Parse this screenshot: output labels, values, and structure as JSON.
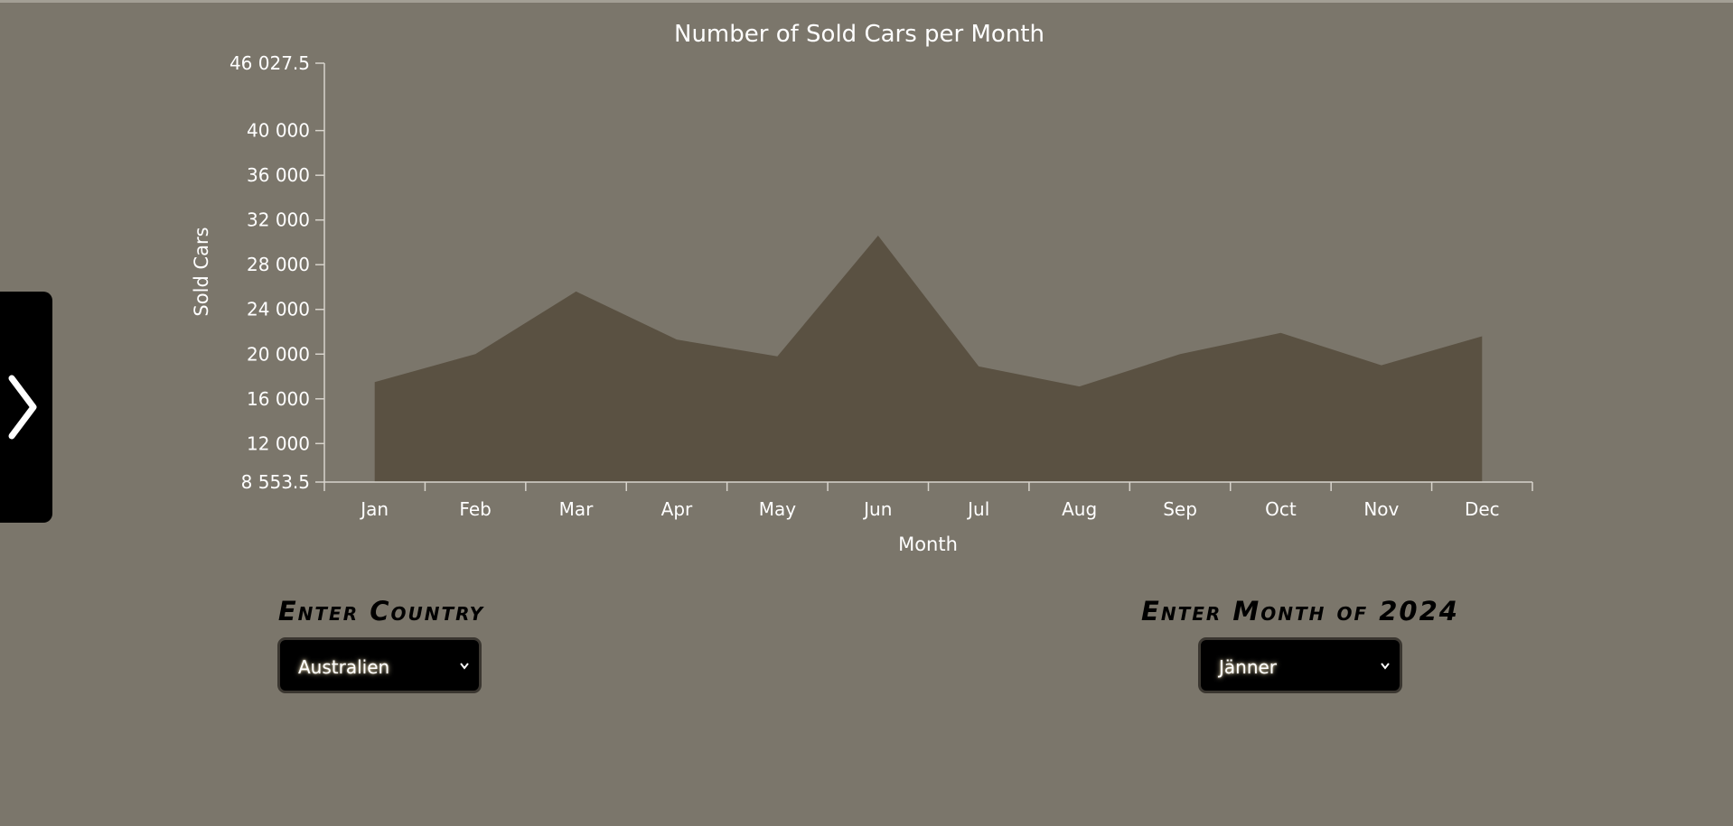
{
  "chart_data": {
    "type": "area",
    "title": "Number of Sold Cars per Month",
    "xlabel": "Month",
    "ylabel": "Sold Cars",
    "categories": [
      "Jan",
      "Feb",
      "Mar",
      "Apr",
      "May",
      "Jun",
      "Jul",
      "Aug",
      "Sep",
      "Oct",
      "Nov",
      "Dec"
    ],
    "values": [
      17500,
      20000,
      25600,
      21300,
      19800,
      30600,
      18900,
      17100,
      20000,
      21900,
      19000,
      21600
    ],
    "ylim": [
      8553.5,
      46027.5
    ],
    "yticks": [
      8553.5,
      12000,
      16000,
      20000,
      24000,
      28000,
      32000,
      36000,
      40000,
      46027.5
    ],
    "ytick_labels": [
      "8 553.5",
      "12 000",
      "16 000",
      "20 000",
      "24 000",
      "28 000",
      "32 000",
      "36 000",
      "40 000",
      "46 027.5"
    ],
    "area_color": "#5a5142",
    "axis_color": "#d8d4cc",
    "grid": false
  },
  "sidebar_toggle": {
    "icon": "chevron-right-icon"
  },
  "country_control": {
    "title": "Enter Country",
    "selected": "Australien"
  },
  "month_control": {
    "title": "Enter Month of 2024",
    "selected": "Jänner"
  }
}
